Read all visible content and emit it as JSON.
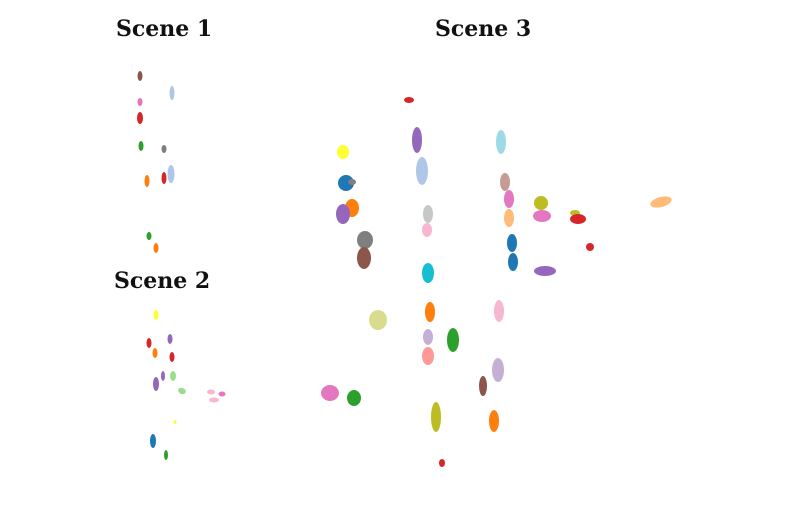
{
  "scenes": [
    {
      "title": "Scene 1"
    },
    {
      "title": "Scene 2"
    },
    {
      "title": "Scene 3"
    }
  ],
  "palette": {
    "blue": "#1f77b4",
    "light_blue": "#aec7e8",
    "orange": "#ff7f0e",
    "peach": "#ffbb78",
    "green": "#2ca02c",
    "light_green": "#98df8a",
    "red": "#d62728",
    "salmon": "#ff9896",
    "purple": "#9467bd",
    "lavender": "#c5b0d5",
    "brown": "#8c564b",
    "tan": "#c49c94",
    "pink": "#e377c2",
    "light_pink": "#f7b6d2",
    "gray": "#7f7f7f",
    "light_gray": "#c7c7c7",
    "olive": "#bcbd22",
    "khaki": "#dbdb8d",
    "cyan": "#17becf",
    "light_cyan": "#9edae5",
    "yellow": "#ffff33"
  }
}
